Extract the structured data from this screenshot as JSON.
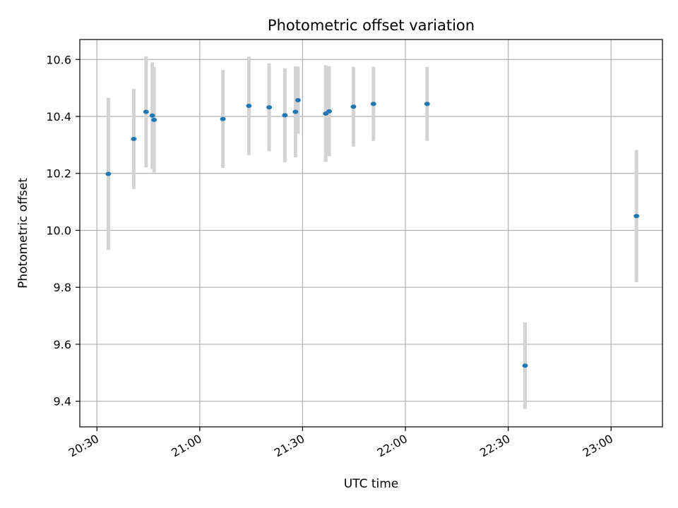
{
  "chart_data": {
    "type": "scatter",
    "title": "Photometric offset variation",
    "xlabel": "UTC time",
    "ylabel": "Photometric offset",
    "x_axis_type": "time",
    "xlim": [
      "20:25",
      "23:15"
    ],
    "ylim": [
      9.31,
      10.67
    ],
    "x_ticks": [
      "20:30",
      "21:00",
      "21:30",
      "22:00",
      "22:30",
      "23:00"
    ],
    "y_ticks": [
      9.4,
      9.6,
      9.8,
      10.0,
      10.2,
      10.4,
      10.6
    ],
    "y_tick_labels": [
      "9.4",
      "9.6",
      "9.8",
      "10.0",
      "10.2",
      "10.4",
      "10.6"
    ],
    "grid": true,
    "point_color": "#1f77b4",
    "errorbar_color": "#d3d3d3",
    "points": [
      {
        "x": "20:33:20",
        "y": 10.198,
        "yerr": 0.267
      },
      {
        "x": "20:40:45",
        "y": 10.321,
        "yerr": 0.176
      },
      {
        "x": "20:44:20",
        "y": 10.416,
        "yerr": 0.195
      },
      {
        "x": "20:46:10",
        "y": 10.403,
        "yerr": 0.187
      },
      {
        "x": "20:46:40",
        "y": 10.388,
        "yerr": 0.185
      },
      {
        "x": "21:06:45",
        "y": 10.391,
        "yerr": 0.172
      },
      {
        "x": "21:14:20",
        "y": 10.437,
        "yerr": 0.173
      },
      {
        "x": "21:20:15",
        "y": 10.432,
        "yerr": 0.154
      },
      {
        "x": "21:24:50",
        "y": 10.404,
        "yerr": 0.165
      },
      {
        "x": "21:27:55",
        "y": 10.416,
        "yerr": 0.16
      },
      {
        "x": "21:28:40",
        "y": 10.457,
        "yerr": 0.118
      },
      {
        "x": "21:36:45",
        "y": 10.41,
        "yerr": 0.17
      },
      {
        "x": "21:37:45",
        "y": 10.418,
        "yerr": 0.158
      },
      {
        "x": "21:44:50",
        "y": 10.434,
        "yerr": 0.14
      },
      {
        "x": "21:50:40",
        "y": 10.444,
        "yerr": 0.13
      },
      {
        "x": "22:06:20",
        "y": 10.444,
        "yerr": 0.13
      },
      {
        "x": "22:34:55",
        "y": 9.525,
        "yerr": 0.152
      },
      {
        "x": "23:07:25",
        "y": 10.05,
        "yerr": 0.232
      }
    ]
  }
}
